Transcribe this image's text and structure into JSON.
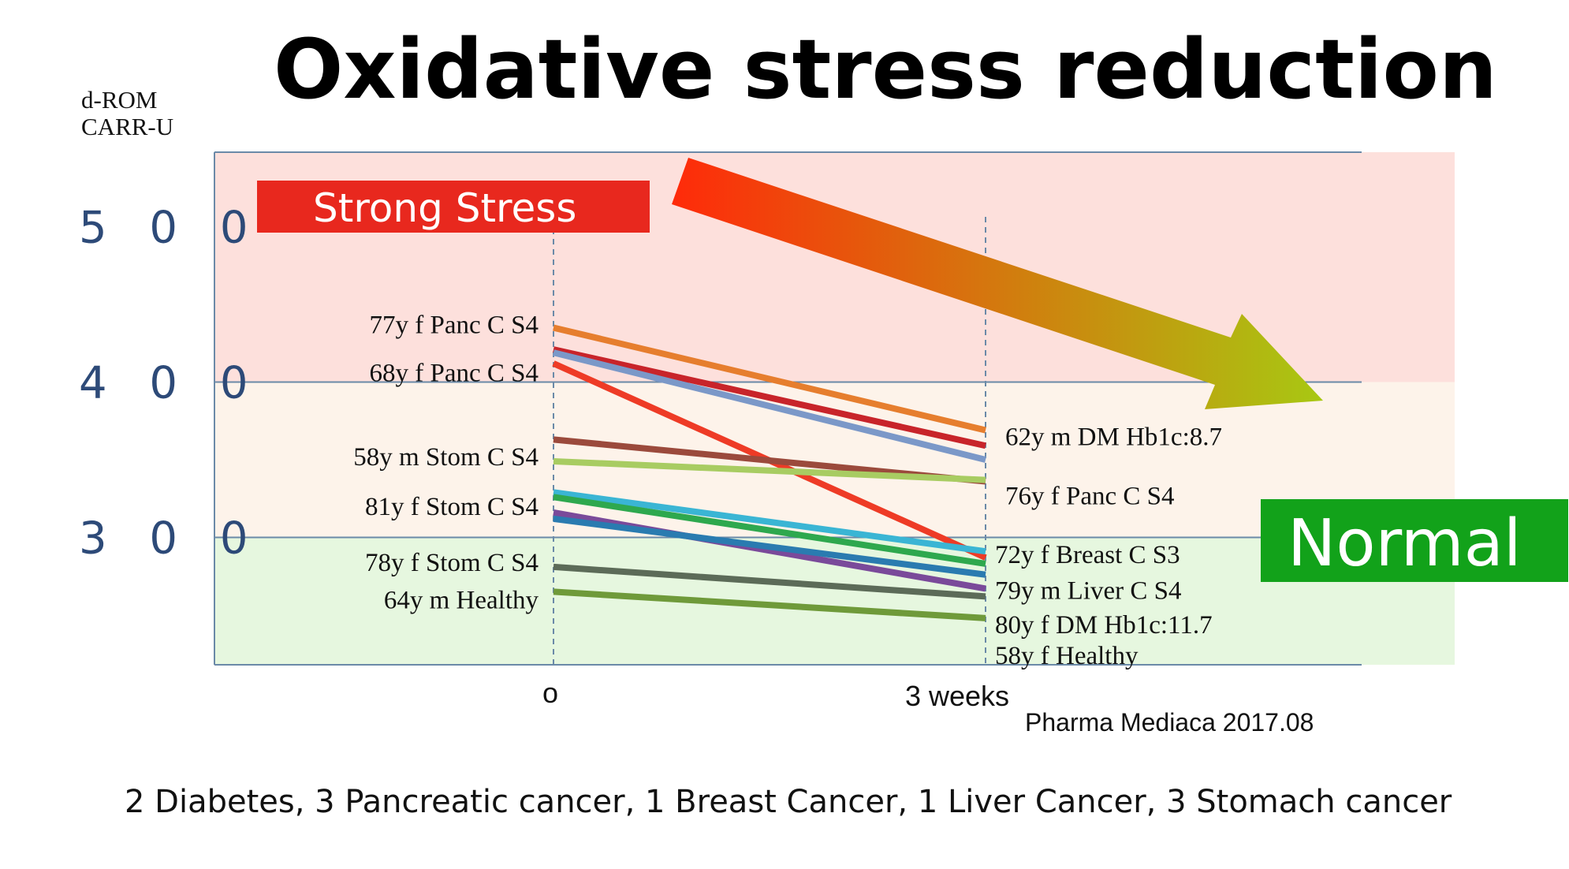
{
  "chart_data": {
    "type": "line",
    "title": "Oxidative stress reduction",
    "ylabel_lines": [
      "d-ROM",
      "CARR-U"
    ],
    "categories": [
      "o",
      "3 weeks"
    ],
    "yticks": [
      {
        "value": 500,
        "label": "5 0 0"
      },
      {
        "value": 400,
        "label": "4 0 0"
      },
      {
        "value": 300,
        "label": "3 0 0"
      }
    ],
    "ylim": [
      218,
      548
    ],
    "zones": [
      {
        "label": "Strong Stress",
        "from": 400,
        "to": 548,
        "color": "#fde0dc",
        "badge_color": "#e8281e"
      },
      {
        "from": 300,
        "to": 400,
        "color": "#fdf3ea"
      },
      {
        "label": "Normal",
        "from": 218,
        "to": 300,
        "color": "#e6f7df",
        "badge_color": "#12a21a"
      }
    ],
    "series": [
      {
        "values": [
          435,
          369
        ],
        "color": "#e67e2e"
      },
      {
        "values": [
          421,
          359
        ],
        "color": "#c8242a"
      },
      {
        "values": [
          419,
          350
        ],
        "color": "#7b98c8"
      },
      {
        "values": [
          412,
          287
        ],
        "color": "#ee3b26"
      },
      {
        "values": [
          363,
          336
        ],
        "color": "#9b4a3c"
      },
      {
        "values": [
          349,
          337
        ],
        "color": "#a8cc62"
      },
      {
        "values": [
          329,
          291
        ],
        "color": "#3ab5d4"
      },
      {
        "values": [
          326,
          283
        ],
        "color": "#2ea84e"
      },
      {
        "values": [
          316,
          267
        ],
        "color": "#7a4a9a"
      },
      {
        "values": [
          312,
          276
        ],
        "color": "#2a7bb0"
      },
      {
        "values": [
          281,
          262
        ],
        "color": "#5c6b58"
      },
      {
        "values": [
          265,
          248
        ],
        "color": "#6f9a3a"
      }
    ],
    "left_annotations": [
      {
        "text": "77y f Panc C  S4",
        "y": 437
      },
      {
        "text": "68y f Panc C  S4",
        "y": 406
      },
      {
        "text": "58y m Stom C  S4",
        "y": 352
      },
      {
        "text": "81y f Stom C  S4",
        "y": 320
      },
      {
        "text": "78y f Stom C  S4",
        "y": 284
      },
      {
        "text": "64y m Healthy",
        "y": 260
      }
    ],
    "right_annotations": [
      {
        "text": "62y m DM Hb1c:8.7",
        "y": 365
      },
      {
        "text": "76y f Panc C  S4",
        "y": 327
      },
      {
        "text": "72y f Breast C  S3",
        "y": 289
      },
      {
        "text": "79y m Liver C S4",
        "y": 266
      },
      {
        "text": "80y f DM Hb1c:11.7",
        "y": 244
      },
      {
        "text": "58y f Healthy",
        "y": 224
      }
    ],
    "trend_arrow_colors": [
      "#ff2a0a",
      "#a8c812"
    ],
    "source": "Pharma Mediaca 2017.08",
    "footnote": "2 Diabetes, 3 Pancreatic cancer,  1 Breast Cancer,  1 Liver Cancer, 3 Stomach cancer",
    "grid": true
  }
}
